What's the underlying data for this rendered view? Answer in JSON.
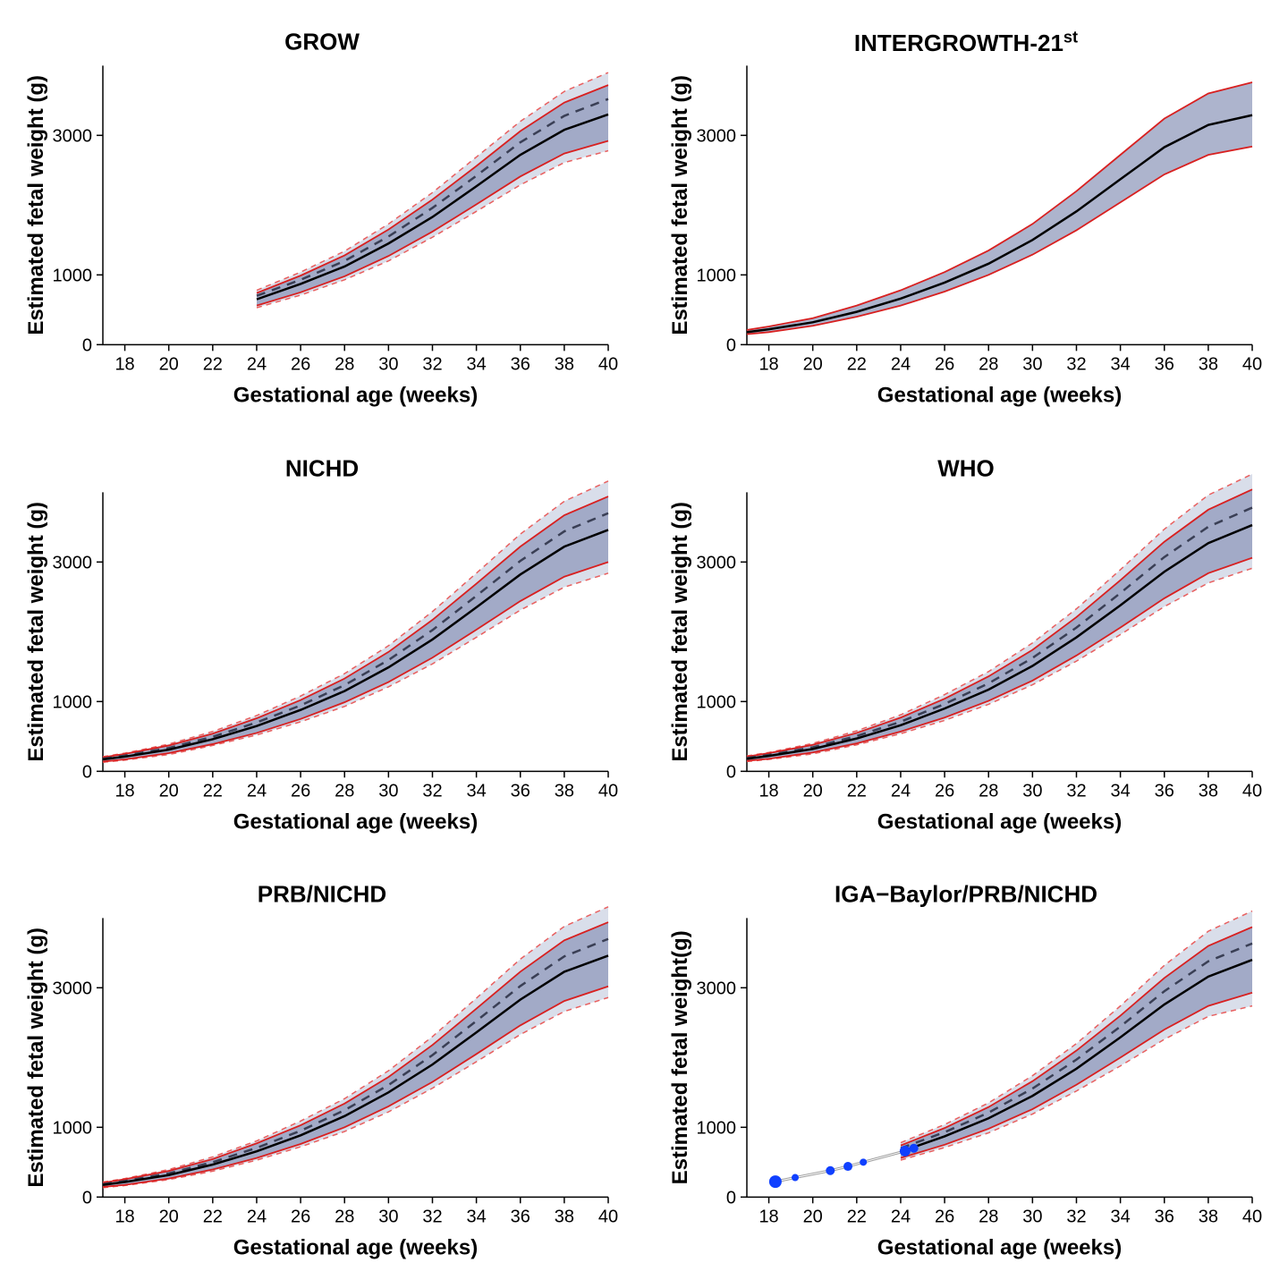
{
  "global": {
    "xlabel": "Gestational age (weeks)",
    "ylabel": "Estimated fetal weight (g)",
    "ylabel_alt": "Estimated fetal weight(g)",
    "xlim": [
      17,
      40
    ],
    "ylim": [
      0,
      4000
    ],
    "xticks": [
      18,
      20,
      22,
      24,
      26,
      28,
      30,
      32,
      34,
      36,
      38,
      40
    ],
    "yticks": [
      0,
      1000,
      3000
    ],
    "tick_fontsize": 20,
    "label_fontsize": 24,
    "title_fontsize": 26,
    "background": "#ffffff",
    "axis_color": "#000000",
    "band_dark_fill": "#8a94b8",
    "band_dark_opacity": 0.7,
    "band_light_fill": "#c0c8dc",
    "band_light_opacity": 0.6,
    "median_color": "#000000",
    "median_width": 2.5,
    "dashed_color": "#3a3f55",
    "dashed_width": 2.5,
    "dashed_pattern": "10,8",
    "red_solid_color": "#d82020",
    "red_solid_width": 1.8,
    "red_dashed_color": "#e86060",
    "red_dashed_width": 1.5,
    "red_dashed_pattern": "6,5",
    "point_color": "#1040ff",
    "point_line_color": "#a0a0a0"
  },
  "panels": [
    {
      "title": "GROW",
      "title_html": "GROW",
      "xstart": 24,
      "show_light_band": true,
      "show_dashed_median": true,
      "show_red_dashed": true,
      "ages": [
        24,
        26,
        28,
        30,
        32,
        34,
        36,
        38,
        40
      ],
      "median": [
        650,
        870,
        1120,
        1450,
        1830,
        2270,
        2720,
        3080,
        3300
      ],
      "p10": [
        560,
        750,
        980,
        1270,
        1620,
        2010,
        2410,
        2740,
        2920
      ],
      "p90": [
        740,
        990,
        1280,
        1650,
        2080,
        2560,
        3060,
        3470,
        3720
      ],
      "p5": [
        530,
        710,
        930,
        1200,
        1540,
        1910,
        2290,
        2610,
        2780
      ],
      "p95": [
        780,
        1040,
        1340,
        1730,
        2180,
        2690,
        3200,
        3630,
        3900
      ],
      "dash": [
        700,
        930,
        1200,
        1550,
        1960,
        2420,
        2900,
        3280,
        3520
      ],
      "points": []
    },
    {
      "title": "INTERGROWTH-21st",
      "title_html": "INTERGROWTH-21<sup>st</sup>",
      "xstart": 17,
      "show_light_band": false,
      "show_dashed_median": false,
      "show_red_dashed": false,
      "ages": [
        17,
        18,
        20,
        22,
        24,
        26,
        28,
        30,
        32,
        34,
        36,
        38,
        40
      ],
      "median": [
        180,
        220,
        320,
        470,
        660,
        890,
        1160,
        1500,
        1910,
        2370,
        2830,
        3150,
        3290
      ],
      "p10": [
        150,
        180,
        270,
        400,
        560,
        760,
        1000,
        1290,
        1640,
        2040,
        2440,
        2720,
        2840
      ],
      "p90": [
        210,
        260,
        380,
        560,
        780,
        1040,
        1350,
        1730,
        2200,
        2720,
        3240,
        3600,
        3760
      ],
      "p5": [
        150,
        180,
        270,
        400,
        560,
        760,
        1000,
        1290,
        1640,
        2040,
        2440,
        2720,
        2840
      ],
      "p95": [
        210,
        260,
        380,
        560,
        780,
        1040,
        1350,
        1730,
        2200,
        2720,
        3240,
        3600,
        3760
      ],
      "dash": [],
      "points": []
    },
    {
      "title": "NICHD",
      "title_html": "NICHD",
      "xstart": 17,
      "show_light_band": true,
      "show_dashed_median": true,
      "show_red_dashed": true,
      "ages": [
        17,
        18,
        20,
        22,
        24,
        26,
        28,
        30,
        32,
        34,
        36,
        38,
        40
      ],
      "median": [
        170,
        210,
        310,
        460,
        650,
        880,
        1150,
        1490,
        1890,
        2350,
        2820,
        3220,
        3460
      ],
      "p10": [
        140,
        170,
        260,
        390,
        550,
        750,
        990,
        1280,
        1630,
        2030,
        2440,
        2790,
        3000
      ],
      "p90": [
        200,
        250,
        370,
        540,
        760,
        1020,
        1330,
        1710,
        2170,
        2690,
        3220,
        3670,
        3940
      ],
      "p5": [
        130,
        160,
        240,
        370,
        520,
        710,
        930,
        1210,
        1540,
        1920,
        2310,
        2640,
        2840
      ],
      "p95": [
        210,
        260,
        390,
        570,
        800,
        1080,
        1400,
        1800,
        2290,
        2840,
        3400,
        3870,
        4160
      ],
      "dash": [
        180,
        225,
        335,
        495,
        700,
        945,
        1235,
        1595,
        2025,
        2515,
        3015,
        3440,
        3700
      ],
      "points": []
    },
    {
      "title": "WHO",
      "title_html": "WHO",
      "xstart": 17,
      "show_light_band": true,
      "show_dashed_median": true,
      "show_red_dashed": true,
      "ages": [
        17,
        18,
        20,
        22,
        24,
        26,
        28,
        30,
        32,
        34,
        36,
        38,
        40
      ],
      "median": [
        180,
        220,
        320,
        470,
        660,
        900,
        1170,
        1510,
        1920,
        2380,
        2860,
        3270,
        3530
      ],
      "p10": [
        150,
        180,
        270,
        400,
        570,
        770,
        1010,
        1300,
        1660,
        2060,
        2480,
        2840,
        3060
      ],
      "p90": [
        210,
        260,
        380,
        550,
        770,
        1040,
        1360,
        1740,
        2210,
        2740,
        3290,
        3750,
        4040
      ],
      "p5": [
        140,
        170,
        250,
        380,
        540,
        730,
        960,
        1240,
        1580,
        1960,
        2360,
        2700,
        2910
      ],
      "p95": [
        220,
        270,
        400,
        580,
        810,
        1100,
        1430,
        1840,
        2330,
        2890,
        3470,
        3960,
        4260
      ],
      "dash": [
        190,
        235,
        345,
        505,
        710,
        965,
        1260,
        1625,
        2060,
        2555,
        3070,
        3505,
        3780
      ],
      "points": []
    },
    {
      "title": "PRB/NICHD",
      "title_html": "PRB/NICHD",
      "xstart": 17,
      "show_light_band": true,
      "show_dashed_median": true,
      "show_red_dashed": true,
      "ages": [
        17,
        18,
        20,
        22,
        24,
        26,
        28,
        30,
        32,
        34,
        36,
        38,
        40
      ],
      "median": [
        175,
        215,
        315,
        465,
        655,
        885,
        1160,
        1500,
        1900,
        2360,
        2830,
        3230,
        3460
      ],
      "p10": [
        145,
        175,
        265,
        395,
        560,
        760,
        1000,
        1300,
        1650,
        2050,
        2460,
        2810,
        3020
      ],
      "p90": [
        205,
        255,
        375,
        545,
        770,
        1030,
        1340,
        1720,
        2180,
        2700,
        3230,
        3680,
        3940
      ],
      "p5": [
        135,
        165,
        250,
        370,
        530,
        720,
        940,
        1220,
        1560,
        1940,
        2330,
        2660,
        2860
      ],
      "p95": [
        215,
        265,
        395,
        575,
        805,
        1090,
        1410,
        1810,
        2300,
        2850,
        3410,
        3880,
        4160
      ],
      "dash": [
        185,
        230,
        340,
        500,
        705,
        950,
        1245,
        1605,
        2035,
        2525,
        3025,
        3450,
        3700
      ],
      "points": []
    },
    {
      "title": "IGA-Baylor/PRB/NICHD",
      "title_html": "IGA−Baylor/PRB/NICHD",
      "xstart": 24,
      "show_light_band": true,
      "show_dashed_median": true,
      "show_red_dashed": true,
      "use_alt_ylabel": true,
      "ages": [
        24,
        26,
        28,
        30,
        32,
        34,
        36,
        38,
        40
      ],
      "median": [
        650,
        870,
        1130,
        1450,
        1840,
        2290,
        2760,
        3160,
        3400
      ],
      "p10": [
        560,
        750,
        980,
        1260,
        1610,
        2000,
        2400,
        2740,
        2930
      ],
      "p90": [
        740,
        990,
        1290,
        1660,
        2100,
        2600,
        3140,
        3600,
        3870
      ],
      "p5": [
        530,
        710,
        920,
        1190,
        1520,
        1880,
        2260,
        2590,
        2740
      ],
      "p95": [
        780,
        1040,
        1350,
        1740,
        2200,
        2740,
        3320,
        3810,
        4100
      ],
      "dash": [
        700,
        930,
        1210,
        1555,
        1970,
        2445,
        2950,
        3380,
        3635
      ],
      "points": [
        {
          "x": 18.3,
          "y": 220,
          "r": 7
        },
        {
          "x": 19.2,
          "y": 280,
          "r": 4
        },
        {
          "x": 20.8,
          "y": 380,
          "r": 5
        },
        {
          "x": 21.6,
          "y": 440,
          "r": 5
        },
        {
          "x": 22.3,
          "y": 500,
          "r": 4
        },
        {
          "x": 24.2,
          "y": 660,
          "r": 6
        },
        {
          "x": 24.6,
          "y": 700,
          "r": 5
        }
      ]
    }
  ]
}
